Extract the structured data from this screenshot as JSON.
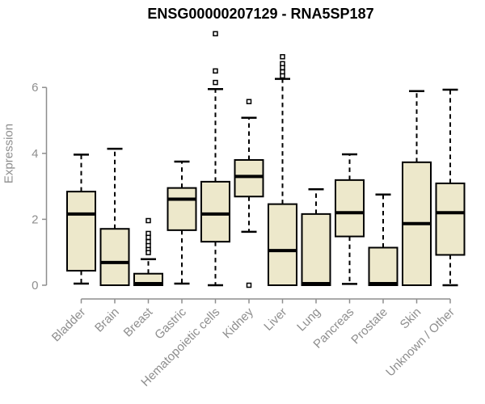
{
  "chart_data": {
    "type": "boxplot",
    "title": "ENSG00000207129 - RNA5SP187",
    "ylabel": "Expression",
    "xlabel": "",
    "yticks": [
      0,
      2,
      4,
      6
    ],
    "ylim": [
      -0.3,
      7.9
    ],
    "grid": false,
    "legend": null,
    "colors": {
      "box_fill": "#EDE8CB",
      "box_border": "#000000",
      "median": "#000000",
      "whisker": "#000000",
      "outlier": "#000000",
      "axis": "#8e8e8e",
      "tick_label": "#8e8e8e",
      "title": "#000000"
    },
    "boxes": [
      {
        "label": "Bladder",
        "low": 0.05,
        "q1": 0.44,
        "median": 2.16,
        "q3": 2.84,
        "high": 3.96,
        "outliers": []
      },
      {
        "label": "Brain",
        "low": 0.0,
        "q1": 0.0,
        "median": 0.69,
        "q3": 1.71,
        "high": 4.14,
        "outliers": []
      },
      {
        "label": "Breast",
        "low": 0.0,
        "q1": 0.0,
        "median": 0.05,
        "q3": 0.35,
        "high": 0.79,
        "outliers": [
          1.96,
          1.57,
          1.45,
          1.32,
          1.2,
          1.08,
          0.99
        ]
      },
      {
        "label": "Gastric",
        "low": 0.05,
        "q1": 1.67,
        "median": 2.61,
        "q3": 2.95,
        "high": 3.75,
        "outliers": []
      },
      {
        "label": "Hematopoietic cells",
        "low": 0.0,
        "q1": 1.32,
        "median": 2.16,
        "q3": 3.14,
        "high": 5.95,
        "outliers": [
          7.63,
          6.5,
          6.15
        ]
      },
      {
        "label": "Kidney",
        "low": 1.62,
        "q1": 2.69,
        "median": 3.3,
        "q3": 3.8,
        "high": 5.08,
        "outliers": [
          5.57,
          0.0
        ]
      },
      {
        "label": "Liver",
        "low": 0.0,
        "q1": 0.0,
        "median": 1.05,
        "q3": 2.46,
        "high": 6.26,
        "outliers": [
          6.93,
          6.72,
          6.6,
          6.47,
          6.35
        ]
      },
      {
        "label": "Lung",
        "low": 0.0,
        "q1": 0.0,
        "median": 0.05,
        "q3": 2.16,
        "high": 2.91,
        "outliers": []
      },
      {
        "label": "Pancreas",
        "low": 0.04,
        "q1": 1.48,
        "median": 2.2,
        "q3": 3.19,
        "high": 3.97,
        "outliers": []
      },
      {
        "label": "Prostate",
        "low": 0.0,
        "q1": 0.0,
        "median": 0.05,
        "q3": 1.14,
        "high": 2.75,
        "outliers": []
      },
      {
        "label": "Skin",
        "low": 0.0,
        "q1": 0.0,
        "median": 1.87,
        "q3": 3.73,
        "high": 5.89,
        "outliers": []
      },
      {
        "label": "Unknown / Other",
        "low": 0.0,
        "q1": 0.92,
        "median": 2.2,
        "q3": 3.09,
        "high": 5.93,
        "outliers": []
      }
    ]
  }
}
